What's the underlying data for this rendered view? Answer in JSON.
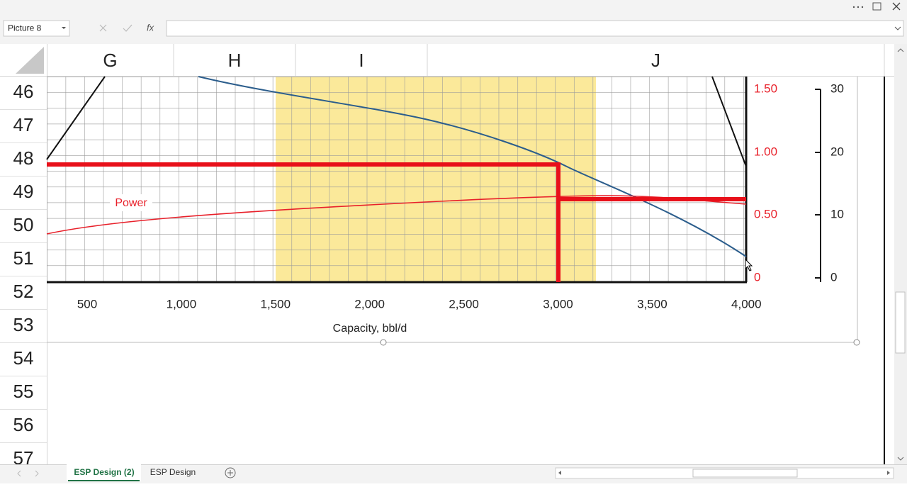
{
  "name_box": "Picture 8",
  "formula_fx": "fx",
  "columns": [
    "G",
    "H",
    "I",
    "J"
  ],
  "rows": [
    "46",
    "47",
    "48",
    "49",
    "50",
    "51",
    "52",
    "53",
    "54",
    "55",
    "56",
    "57"
  ],
  "picture": {
    "power_label": "Power",
    "x_ticks": [
      "500",
      "1,000",
      "1,500",
      "2,000",
      "2,500",
      "3,000",
      "3,500",
      "4,000"
    ],
    "x_axis_title": "Capacity, bbl/d",
    "right_red_ticks": [
      "1.50",
      "1.00",
      "0.50",
      "0"
    ],
    "right_black_ticks": [
      "30",
      "20",
      "10",
      "0"
    ]
  },
  "sheet_tabs": [
    "ESP Design (2)",
    "ESP Design"
  ]
}
